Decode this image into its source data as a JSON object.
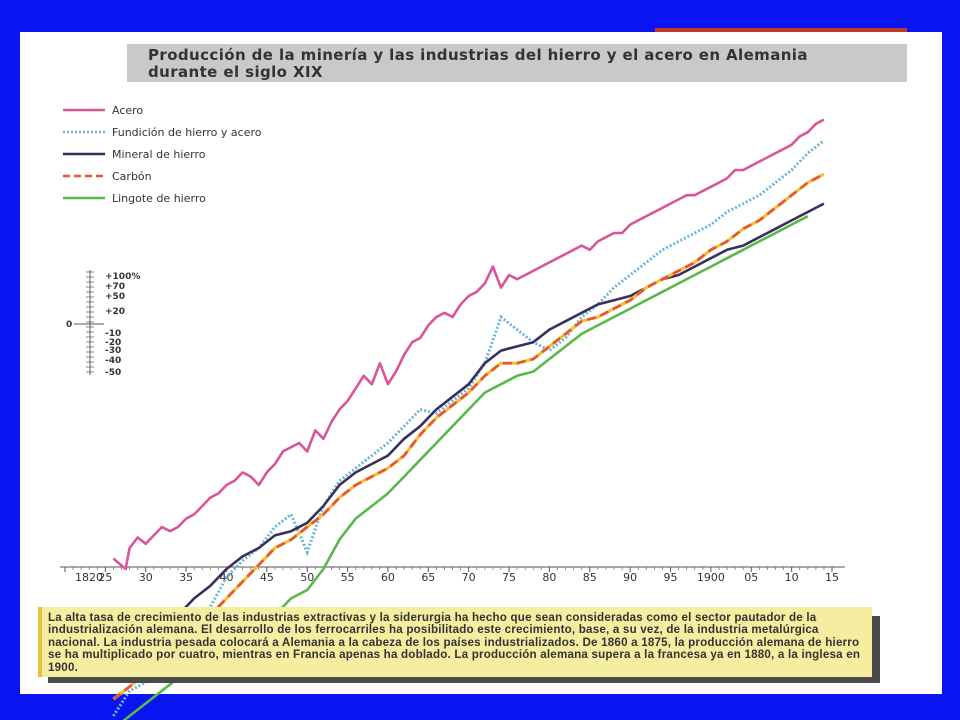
{
  "chart_data": {
    "type": "line",
    "title": "Producción de la minería y las industrias del hierro y el acero en Alemania durante el siglo XIX",
    "x_tick_labels": [
      "1820",
      "25",
      "30",
      "35",
      "40",
      "45",
      "50",
      "55",
      "60",
      "65",
      "70",
      "75",
      "80",
      "85",
      "90",
      "95",
      "1900",
      "05",
      "10",
      "15"
    ],
    "xlim": [
      1820,
      1915
    ],
    "scale_labels": [
      "+100%",
      "+70",
      "+50",
      "+20",
      "0",
      "-10",
      "-20",
      "-30",
      "-40",
      "-50"
    ],
    "legend_placement": "top-left",
    "colors": {
      "acero": "#d8559a",
      "fundicion": "#6cb6dc",
      "mineral": "#3a2f5c",
      "carbon_red": "#e8543a",
      "carbon_yellow": "#f2c230",
      "lingote": "#58b84a"
    },
    "series": [
      {
        "name": "Acero",
        "key": "acero",
        "x": [
          1826,
          1827.5,
          1828,
          1829,
          1830,
          1831,
          1832,
          1833,
          1834,
          1835,
          1836,
          1837,
          1838,
          1839,
          1840,
          1841,
          1842,
          1843,
          1844,
          1845,
          1846,
          1847,
          1848,
          1849,
          1850,
          1851,
          1852,
          1853,
          1854,
          1855,
          1856,
          1857,
          1858,
          1859,
          1860,
          1861,
          1862,
          1863,
          1864,
          1865,
          1866,
          1867,
          1868,
          1869,
          1870,
          1871,
          1872,
          1873,
          1874,
          1875,
          1876,
          1877,
          1878,
          1879,
          1880,
          1881,
          1882,
          1883,
          1884,
          1885,
          1886,
          1887,
          1888,
          1889,
          1890,
          1891,
          1892,
          1893,
          1894,
          1895,
          1896,
          1897,
          1898,
          1899,
          1900,
          1901,
          1902,
          1903,
          1904,
          1905,
          1906,
          1907,
          1908,
          1909,
          1910,
          1911,
          1912,
          1913,
          1914
        ],
        "y": [
          -85,
          -90,
          -80,
          -75,
          -78,
          -74,
          -70,
          -72,
          -70,
          -66,
          -64,
          -60,
          -56,
          -54,
          -50,
          -48,
          -44,
          -46,
          -50,
          -44,
          -40,
          -34,
          -32,
          -30,
          -34,
          -24,
          -28,
          -20,
          -14,
          -10,
          -4,
          2,
          -2,
          8,
          -2,
          4,
          12,
          18,
          20,
          26,
          30,
          32,
          30,
          36,
          40,
          42,
          46,
          54,
          44,
          50,
          48,
          50,
          52,
          54,
          56,
          58,
          60,
          62,
          64,
          62,
          66,
          68,
          70,
          70,
          74,
          76,
          78,
          80,
          82,
          84,
          86,
          88,
          88,
          90,
          92,
          94,
          96,
          100,
          100,
          102,
          104,
          106,
          108,
          110,
          112,
          116,
          118,
          122,
          124
        ]
      },
      {
        "name": "Fundición de hierro y acero",
        "key": "fundicion",
        "x": [
          1826,
          1828,
          1830,
          1832,
          1834,
          1836,
          1838,
          1840,
          1842,
          1844,
          1846,
          1848,
          1850,
          1852,
          1854,
          1856,
          1858,
          1860,
          1862,
          1864,
          1866,
          1868,
          1870,
          1872,
          1874,
          1876,
          1878,
          1880,
          1882,
          1884,
          1886,
          1888,
          1890,
          1892,
          1894,
          1896,
          1898,
          1900,
          1902,
          1904,
          1906,
          1908,
          1910,
          1912,
          1914
        ],
        "y": [
          -160,
          -148,
          -144,
          -140,
          -136,
          -122,
          -108,
          -94,
          -86,
          -80,
          -70,
          -64,
          -82,
          -60,
          -48,
          -42,
          -36,
          -30,
          -22,
          -14,
          -16,
          -10,
          -4,
          8,
          30,
          24,
          18,
          14,
          20,
          30,
          36,
          44,
          50,
          56,
          62,
          66,
          70,
          74,
          80,
          84,
          88,
          94,
          100,
          108,
          114
        ]
      },
      {
        "name": "Mineral de hierro",
        "key": "mineral",
        "x": [
          1820,
          1822,
          1824,
          1826,
          1828,
          1830,
          1832,
          1834,
          1836,
          1838,
          1840,
          1842,
          1844,
          1846,
          1848,
          1850,
          1852,
          1854,
          1856,
          1858,
          1860,
          1862,
          1864,
          1866,
          1868,
          1870,
          1872,
          1874,
          1876,
          1878,
          1880,
          1882,
          1884,
          1886,
          1888,
          1890,
          1892,
          1894,
          1896,
          1898,
          1900,
          1902,
          1904,
          1906,
          1908,
          1910,
          1912,
          1914
        ],
        "y": [
          -130,
          -128,
          -126,
          -122,
          -120,
          -118,
          -116,
          -112,
          -104,
          -98,
          -90,
          -84,
          -80,
          -74,
          -72,
          -68,
          -60,
          -50,
          -44,
          -40,
          -36,
          -28,
          -22,
          -14,
          -8,
          -2,
          8,
          14,
          16,
          18,
          24,
          28,
          32,
          36,
          38,
          40,
          44,
          48,
          50,
          54,
          58,
          62,
          64,
          68,
          72,
          76,
          80,
          84
        ]
      },
      {
        "name": "Carbón",
        "key": "carbon",
        "x": [
          1826,
          1828,
          1830,
          1832,
          1834,
          1836,
          1838,
          1840,
          1842,
          1844,
          1846,
          1848,
          1850,
          1852,
          1854,
          1856,
          1858,
          1860,
          1862,
          1864,
          1866,
          1868,
          1870,
          1872,
          1874,
          1876,
          1878,
          1880,
          1882,
          1884,
          1886,
          1888,
          1890,
          1892,
          1894,
          1896,
          1898,
          1900,
          1902,
          1904,
          1906,
          1908,
          1910,
          1912,
          1914
        ],
        "y": [
          -152,
          -146,
          -140,
          -134,
          -128,
          -120,
          -112,
          -104,
          -96,
          -88,
          -80,
          -76,
          -70,
          -64,
          -56,
          -50,
          -46,
          -42,
          -36,
          -26,
          -18,
          -12,
          -6,
          2,
          8,
          8,
          10,
          16,
          22,
          28,
          30,
          34,
          38,
          44,
          48,
          52,
          56,
          62,
          66,
          72,
          76,
          82,
          88,
          94,
          98
        ]
      },
      {
        "name": "Lingote de hierro",
        "key": "lingote",
        "x": [
          1826,
          1828,
          1830,
          1832,
          1834,
          1836,
          1838,
          1840,
          1842,
          1844,
          1846,
          1848,
          1850,
          1852,
          1854,
          1856,
          1858,
          1860,
          1862,
          1864,
          1866,
          1868,
          1870,
          1872,
          1874,
          1876,
          1878,
          1880,
          1882,
          1884,
          1886,
          1888,
          1890,
          1892,
          1894,
          1896,
          1898,
          1900,
          1902,
          1904,
          1906,
          1908,
          1910,
          1912
        ],
        "y": [
          -166,
          -160,
          -154,
          -148,
          -142,
          -136,
          -132,
          -128,
          -124,
          -120,
          -112,
          -104,
          -100,
          -90,
          -76,
          -66,
          -60,
          -54,
          -46,
          -38,
          -30,
          -22,
          -14,
          -6,
          -2,
          2,
          4,
          10,
          16,
          22,
          26,
          30,
          34,
          38,
          42,
          46,
          50,
          54,
          58,
          62,
          66,
          70,
          74,
          78
        ]
      }
    ]
  },
  "note": {
    "text": "La alta tasa de crecimiento de las industrias extractivas y la siderurgia ha hecho que sean consideradas como el sector pautador de la industrialización alemana. El desarrollo de los ferrocarriles ha posibilitado este crecimiento, base, a su vez, de la industria metalúrgica nacional. La industria pesada colocará a Alemania a la cabeza de los países industrializados. De 1860 a 1875, la producción alemana de hierro se ha multiplicado por cuatro, mientras en Francia apenas ha doblado. La producción alemana supera a la francesa ya en 1880, a la inglesa en 1900."
  }
}
